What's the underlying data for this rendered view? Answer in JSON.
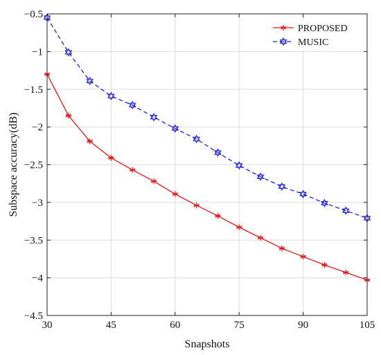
{
  "chart_data": {
    "type": "line",
    "title": "",
    "xlabel": "Snapshots",
    "ylabel": "Subspace accuracy(dB)",
    "xlim": [
      30,
      105
    ],
    "ylim": [
      -4.5,
      -0.5
    ],
    "xticks": [
      "30",
      "45",
      "60",
      "75",
      "90",
      "105"
    ],
    "yticks": [
      "−0.5",
      "−1",
      "−1.5",
      "−2",
      "−2.5",
      "−3",
      "−3.5",
      "−4",
      "−4.5"
    ],
    "grid": true,
    "legend_position": "top-right",
    "x": [
      30,
      35,
      40,
      45,
      50,
      55,
      60,
      65,
      70,
      75,
      80,
      85,
      90,
      95,
      100,
      105
    ],
    "series": [
      {
        "name": "PROPOSED",
        "color": "#e8161b",
        "line": "solid",
        "marker": "asterisk",
        "values": [
          -1.3,
          -1.85,
          -2.19,
          -2.41,
          -2.57,
          -2.72,
          -2.89,
          -3.04,
          -3.18,
          -3.33,
          -3.47,
          -3.61,
          -3.72,
          -3.83,
          -3.93,
          -4.03
        ]
      },
      {
        "name": "MUSIC",
        "color": "#1f1fd6",
        "line": "dashed",
        "marker": "hexagram",
        "values": [
          -0.55,
          -1.01,
          -1.39,
          -1.59,
          -1.71,
          -1.87,
          -2.02,
          -2.16,
          -2.34,
          -2.51,
          -2.66,
          -2.79,
          -2.89,
          -3.01,
          -3.11,
          -3.21
        ]
      }
    ]
  }
}
